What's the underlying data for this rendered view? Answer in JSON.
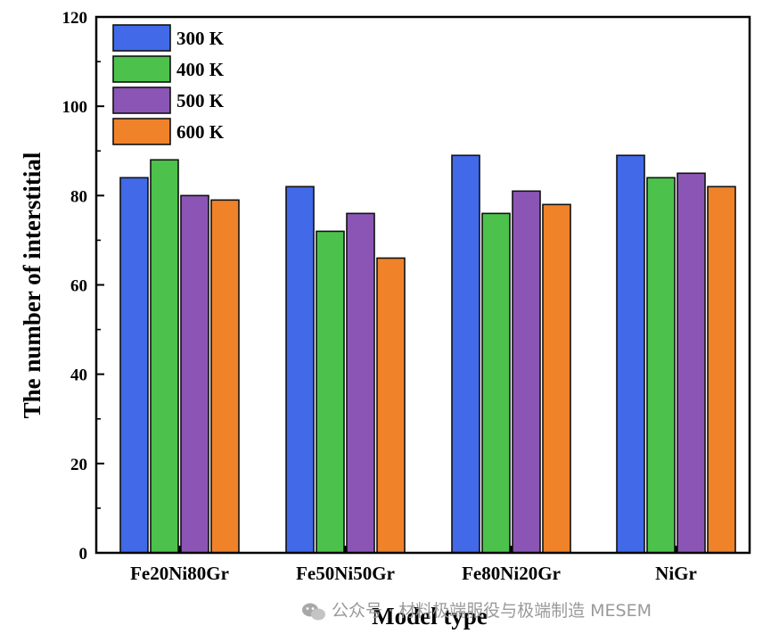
{
  "chart_data": {
    "type": "bar",
    "title": "",
    "xlabel": "Model type",
    "ylabel": "The number of interstitial",
    "ylim": [
      0,
      120
    ],
    "yticks": [
      0,
      20,
      40,
      60,
      80,
      100,
      120
    ],
    "ytick_labels": [
      "0",
      "20",
      "40",
      "60",
      "80",
      "100",
      "120"
    ],
    "categories": [
      "Fe20Ni80Gr",
      "Fe50Ni50Gr",
      "Fe80Ni20Gr",
      "NiGr"
    ],
    "series": [
      {
        "name": "300 K",
        "color": "#4169e8",
        "values": [
          84,
          82,
          89,
          89
        ]
      },
      {
        "name": "400 K",
        "color": "#4cc24c",
        "values": [
          88,
          72,
          76,
          84
        ]
      },
      {
        "name": "500 K",
        "color": "#8b55b5",
        "values": [
          80,
          76,
          81,
          85
        ]
      },
      {
        "name": "600 K",
        "color": "#f0822a",
        "values": [
          79,
          66,
          78,
          82
        ]
      }
    ],
    "legend_position": "top-left",
    "grid": false
  },
  "watermark": {
    "text": "公众号 · 材料极端服役与极端制造 MESEM",
    "icon": "wechat-icon"
  }
}
